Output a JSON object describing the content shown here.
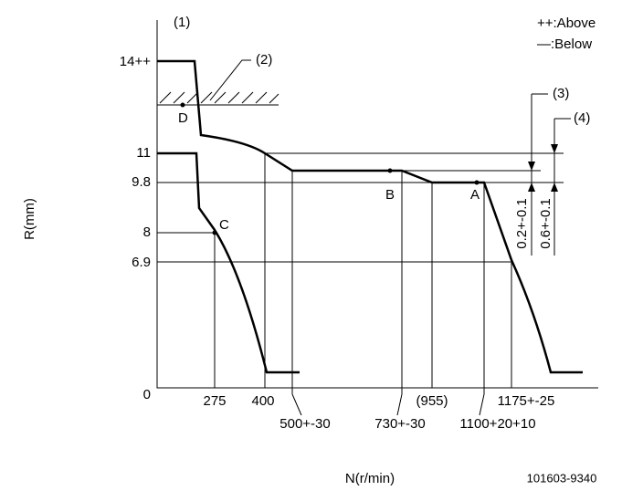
{
  "labels": {
    "ref1": "(1)",
    "above": "++:Above",
    "below": "—:Below",
    "ref2": "(2)",
    "ref3": "(3)",
    "ref4": "(4)",
    "point_d": "D",
    "point_b": "B",
    "point_a": "A",
    "point_c": "C"
  },
  "y_axis": {
    "title": "R(mm)",
    "ticks": [
      "14++",
      "11",
      "9.8",
      "8",
      "6.9",
      "0"
    ]
  },
  "x_axis": {
    "title": "N(r/min)",
    "ticks": [
      "275",
      "400",
      "(955)",
      "1175+-25"
    ],
    "lower_ticks": [
      "500+-30",
      "730+-30",
      "1100+20+10"
    ]
  },
  "tolerances": [
    "0.2+-0.1",
    "0.6+-0.1"
  ],
  "drawing_number": "101603-9340"
}
